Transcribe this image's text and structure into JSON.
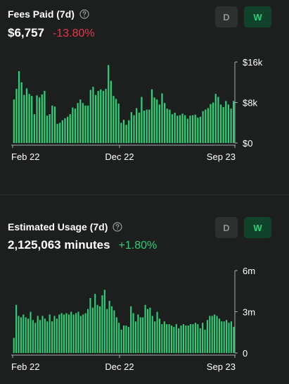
{
  "charts": [
    {
      "title": "Fees Paid (7d)",
      "value": "$6,757",
      "change": "-13.80%",
      "change_direction": "down",
      "toggle": {
        "d_label": "D",
        "w_label": "W",
        "selected": "W"
      }
    },
    {
      "title": "Estimated Usage (7d)",
      "value": "2,125,063 minutes",
      "change": "+1.80%",
      "change_direction": "up",
      "toggle": {
        "d_label": "D",
        "w_label": "W",
        "selected": "W"
      }
    }
  ],
  "colors": {
    "bar": "#2fcf78",
    "background": "#1c1f1e",
    "negative": "#e5344a",
    "positive": "#2fcf78"
  },
  "icons": [
    "help-circle-icon"
  ],
  "chart_data": [
    {
      "type": "bar",
      "title": "Fees Paid (7d)",
      "x_tick_labels": [
        "Feb 22",
        "Dec 22",
        "Sep 23"
      ],
      "y_tick_labels": [
        "$16k",
        "$8k",
        "$0"
      ],
      "y_ticks": [
        16000,
        8000,
        0
      ],
      "ylim": [
        0,
        16000
      ],
      "values": [
        8600,
        10700,
        14200,
        12000,
        9500,
        10800,
        9700,
        9300,
        5700,
        9400,
        9000,
        9600,
        10300,
        5400,
        5700,
        7400,
        7200,
        3800,
        4000,
        4500,
        4900,
        5200,
        5700,
        7000,
        6800,
        7900,
        8600,
        7900,
        7400,
        7400,
        10500,
        11100,
        9500,
        10300,
        10600,
        10300,
        10700,
        15400,
        12300,
        9300,
        8700,
        7800,
        4000,
        4600,
        3600,
        4500,
        6100,
        5500,
        6900,
        6000,
        9100,
        6400,
        6600,
        6600,
        10600,
        9000,
        8600,
        7600,
        9800,
        7900,
        6800,
        6600,
        5700,
        6000,
        5400,
        5500,
        5800,
        5500,
        4800,
        5400,
        5500,
        5600,
        5000,
        5200,
        6300,
        6600,
        6900,
        7700,
        8000,
        9700,
        9100,
        7600,
        7100,
        8300,
        7600,
        6800,
        8300
      ],
      "grid": false,
      "legend": "none"
    },
    {
      "type": "bar",
      "title": "Estimated Usage (7d)",
      "x_tick_labels": [
        "Feb 22",
        "Dec 22",
        "Sep 23"
      ],
      "y_tick_labels": [
        "6m",
        "3m",
        "0"
      ],
      "y_ticks": [
        6000000,
        3000000,
        0
      ],
      "ylim": [
        0,
        6000000
      ],
      "values": [
        1100000,
        3500000,
        2700000,
        2600000,
        2800000,
        2600000,
        2500000,
        3000000,
        2400000,
        2200000,
        2700000,
        2400000,
        2700000,
        2500000,
        2300000,
        2800000,
        2300000,
        2700000,
        2500000,
        2800000,
        2900000,
        2800000,
        2900000,
        2800000,
        3000000,
        2800000,
        2900000,
        3000000,
        2700000,
        2800000,
        2900000,
        3200000,
        4000000,
        3300000,
        4300000,
        3500000,
        3400000,
        4200000,
        4600000,
        3200000,
        3800000,
        3400000,
        3100000,
        2600000,
        2200000,
        1700000,
        2000000,
        2000000,
        1900000,
        3400000,
        2900000,
        2300000,
        2800000,
        2600000,
        2600000,
        3500000,
        3200000,
        3300000,
        2700000,
        2300000,
        3000000,
        2500000,
        2100000,
        2300000,
        2100000,
        2100000,
        2000000,
        1900000,
        2100000,
        1800000,
        2000000,
        2100000,
        2000000,
        2000000,
        2100000,
        2100000,
        2200000,
        2100000,
        1800000,
        2200000,
        1700000,
        2400000,
        2700000,
        2700000,
        2800000,
        2700000,
        2500000,
        2300000,
        2300000,
        2400000,
        2200000,
        2300000,
        1900000
      ],
      "grid": false,
      "legend": "none"
    }
  ]
}
